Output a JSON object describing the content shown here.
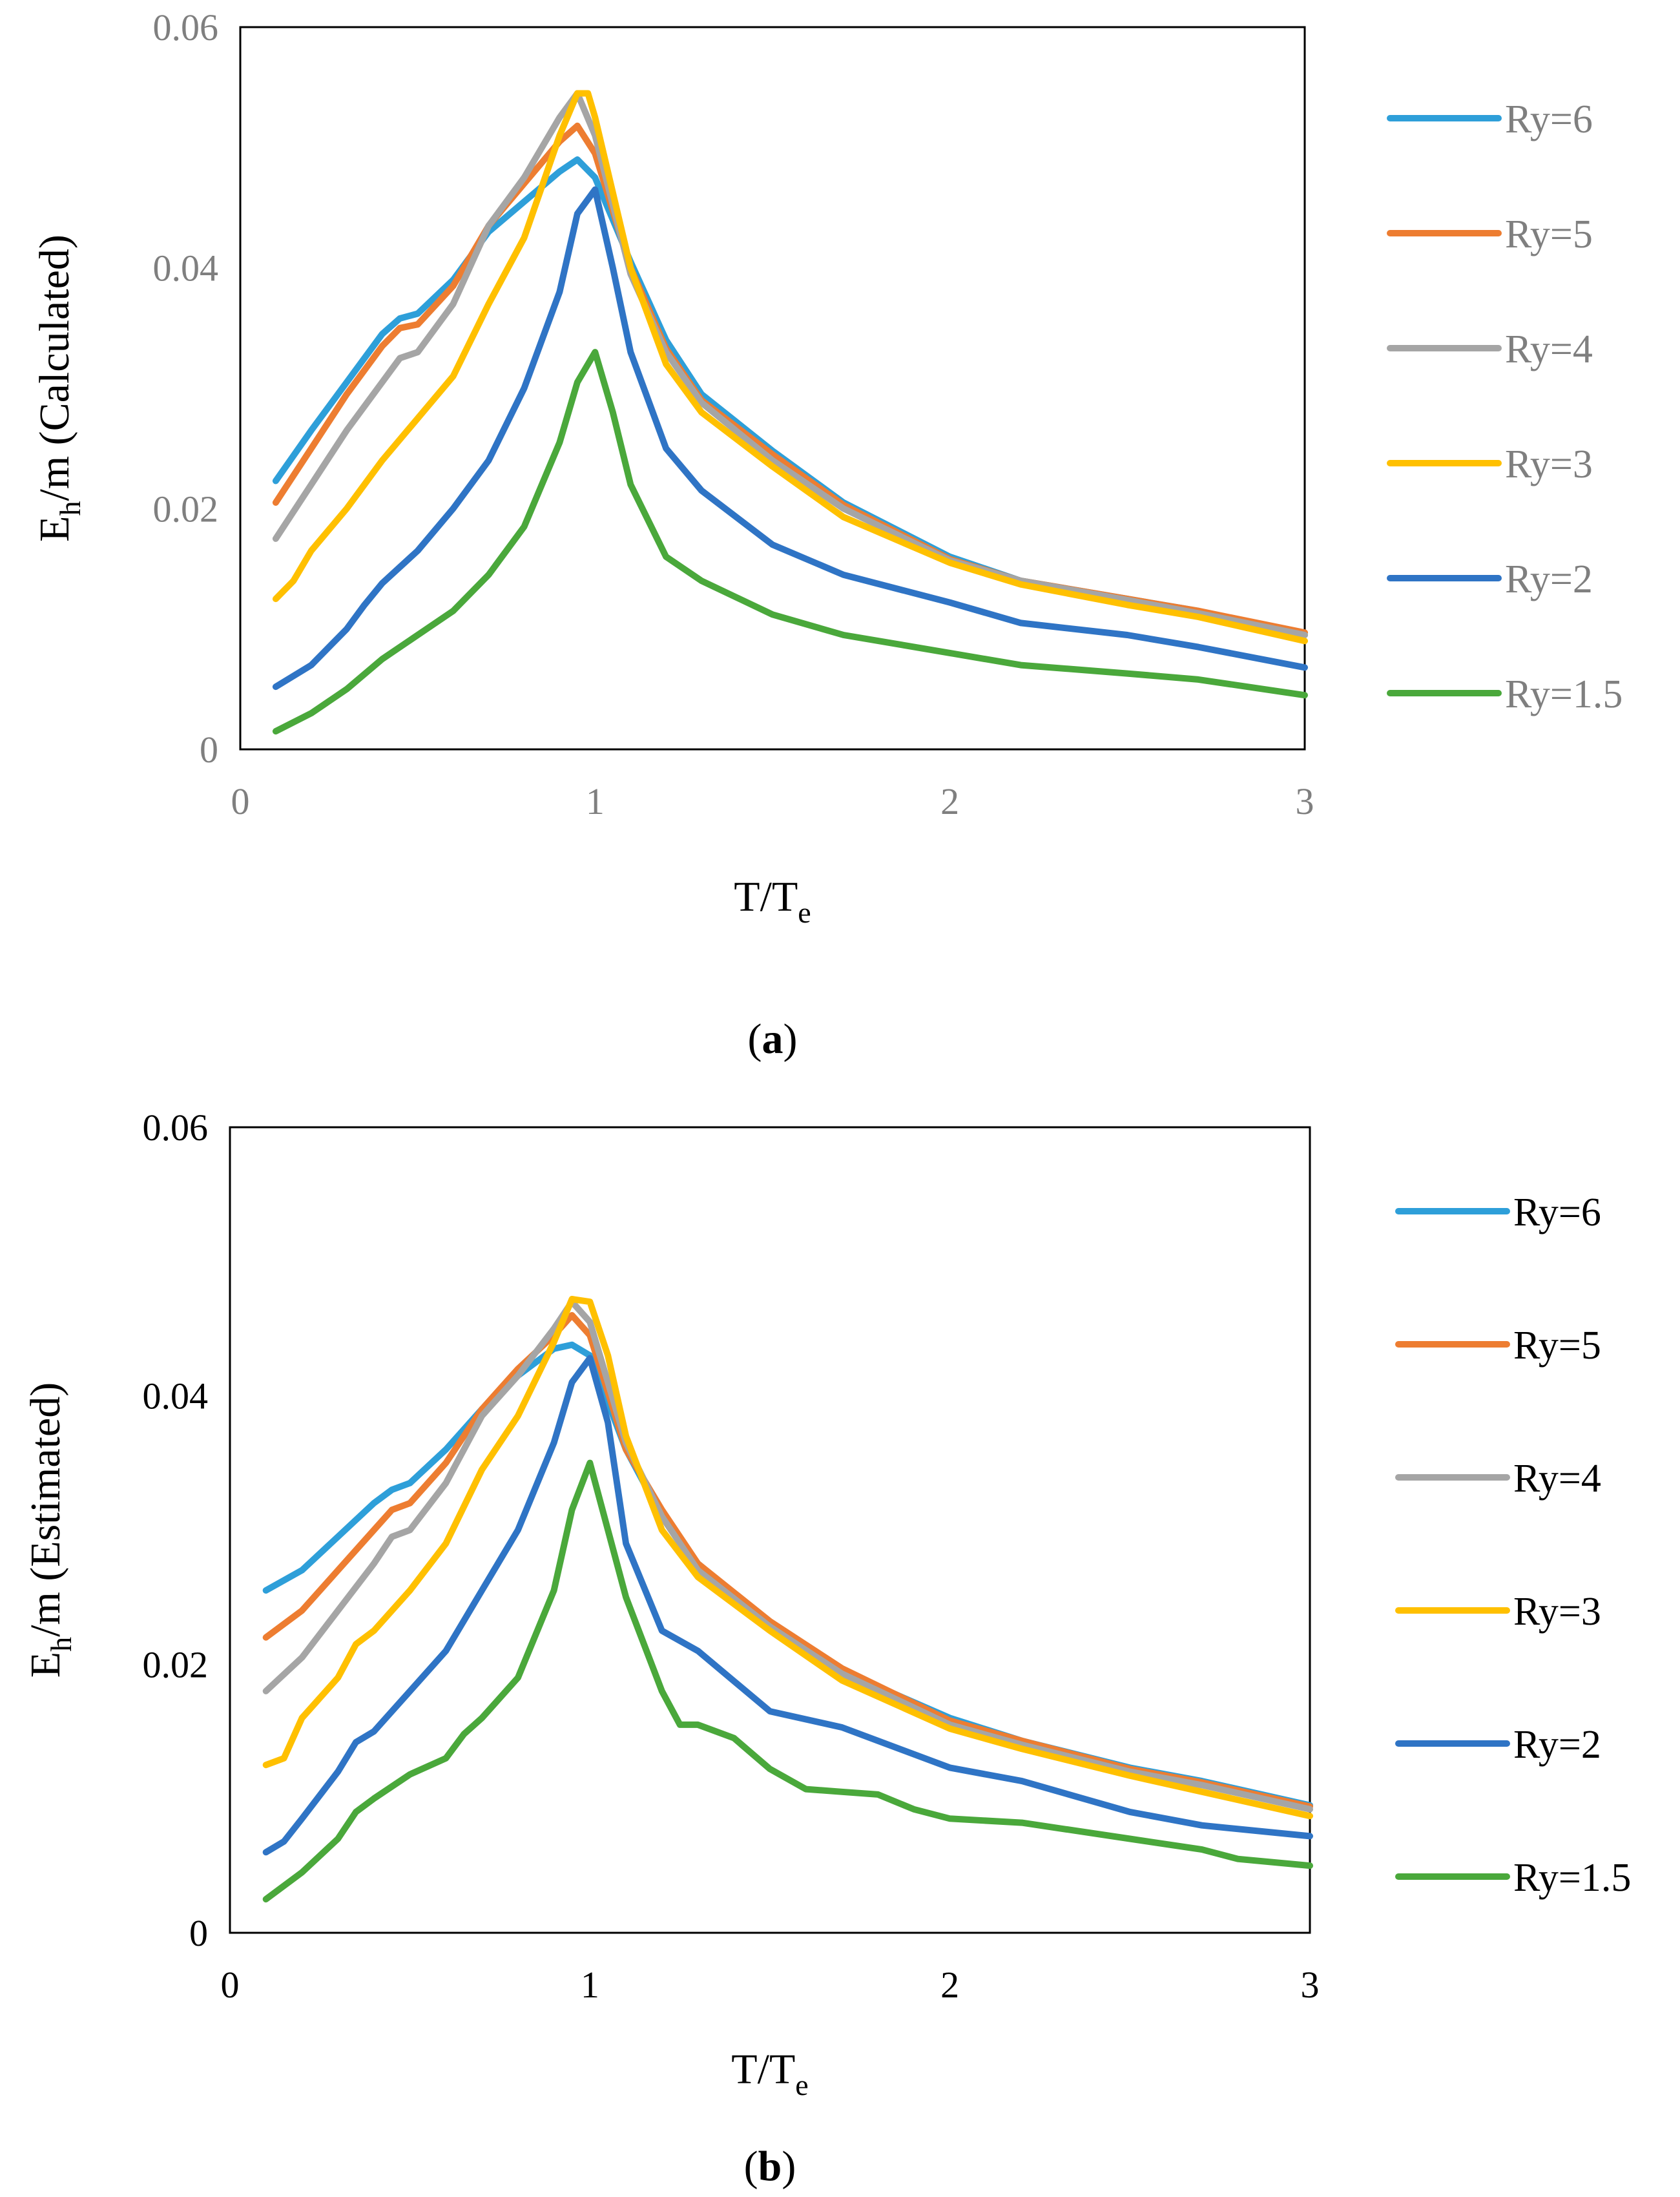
{
  "colors": {
    "Ry=6": "#2e9fd9",
    "Ry=5": "#ed7d31",
    "Ry=4": "#a5a5a5",
    "Ry=3": "#ffc000",
    "Ry=2": "#2f74c5",
    "Ry=1.5": "#4aa83b",
    "frame": "#000000",
    "tick_gray": "#7f7f7f"
  },
  "chart_data": [
    {
      "id": "a",
      "type": "line",
      "caption": "a",
      "xlabel": {
        "main": "T/T",
        "sub": "e"
      },
      "ylabel": {
        "pre": "E",
        "sub": "h",
        "post": "/m (Calculated)"
      },
      "xlim": [
        0,
        3
      ],
      "ylim": [
        0,
        0.06
      ],
      "xticks": [
        "0",
        "1",
        "2",
        "3"
      ],
      "yticks": [
        "0",
        "0.02",
        "0.04",
        "0.06"
      ],
      "legend_position": "right",
      "series": [
        {
          "name": "Ry=6",
          "x": [
            0.1,
            0.2,
            0.3,
            0.4,
            0.45,
            0.5,
            0.6,
            0.7,
            0.8,
            0.9,
            0.95,
            1.0,
            1.1,
            1.2,
            1.3,
            1.5,
            1.7,
            2.0,
            2.2,
            2.5,
            2.7,
            3.0
          ],
          "y": [
            0.0223,
            0.0265,
            0.0305,
            0.0345,
            0.0358,
            0.0362,
            0.039,
            0.043,
            0.0455,
            0.048,
            0.049,
            0.0475,
            0.0405,
            0.034,
            0.0295,
            0.0248,
            0.0205,
            0.016,
            0.014,
            0.0125,
            0.0115,
            0.0095
          ]
        },
        {
          "name": "Ry=5",
          "x": [
            0.1,
            0.2,
            0.3,
            0.4,
            0.45,
            0.5,
            0.6,
            0.7,
            0.8,
            0.9,
            0.95,
            1.0,
            1.1,
            1.2,
            1.3,
            1.5,
            1.7,
            2.0,
            2.2,
            2.5,
            2.7,
            3.0
          ],
          "y": [
            0.0205,
            0.025,
            0.0295,
            0.0335,
            0.035,
            0.0353,
            0.0385,
            0.0435,
            0.047,
            0.0505,
            0.0518,
            0.0495,
            0.04,
            0.0333,
            0.029,
            0.0245,
            0.0203,
            0.0158,
            0.014,
            0.0125,
            0.0115,
            0.0097
          ]
        },
        {
          "name": "Ry=4",
          "x": [
            0.1,
            0.2,
            0.3,
            0.4,
            0.45,
            0.5,
            0.6,
            0.7,
            0.8,
            0.9,
            0.95,
            1.0,
            1.1,
            1.2,
            1.3,
            1.5,
            1.7,
            2.0,
            2.2,
            2.5,
            2.7,
            3.0
          ],
          "y": [
            0.0175,
            0.022,
            0.0265,
            0.0305,
            0.0325,
            0.033,
            0.037,
            0.0435,
            0.0475,
            0.0525,
            0.0545,
            0.051,
            0.0395,
            0.033,
            0.0288,
            0.024,
            0.02,
            0.0157,
            0.014,
            0.0124,
            0.0113,
            0.0095
          ]
        },
        {
          "name": "Ry=3",
          "x": [
            0.1,
            0.15,
            0.2,
            0.3,
            0.4,
            0.5,
            0.6,
            0.7,
            0.8,
            0.9,
            0.95,
            0.98,
            1.0,
            1.1,
            1.2,
            1.3,
            1.5,
            1.7,
            2.0,
            2.2,
            2.5,
            2.7,
            3.0
          ],
          "y": [
            0.0125,
            0.014,
            0.0165,
            0.02,
            0.024,
            0.0275,
            0.031,
            0.037,
            0.0425,
            0.051,
            0.0545,
            0.0545,
            0.0525,
            0.04,
            0.032,
            0.028,
            0.0235,
            0.0193,
            0.0155,
            0.0137,
            0.012,
            0.011,
            0.009
          ]
        },
        {
          "name": "Ry=2",
          "x": [
            0.1,
            0.2,
            0.3,
            0.35,
            0.4,
            0.5,
            0.6,
            0.7,
            0.8,
            0.9,
            0.95,
            1.0,
            1.05,
            1.1,
            1.2,
            1.3,
            1.5,
            1.7,
            2.0,
            2.2,
            2.5,
            2.7,
            3.0
          ],
          "y": [
            0.0052,
            0.007,
            0.01,
            0.012,
            0.0138,
            0.0165,
            0.02,
            0.024,
            0.03,
            0.038,
            0.0445,
            0.0465,
            0.04,
            0.033,
            0.025,
            0.0215,
            0.017,
            0.0145,
            0.0122,
            0.0105,
            0.0095,
            0.0085,
            0.0068
          ]
        },
        {
          "name": "Ry=1.5",
          "x": [
            0.1,
            0.2,
            0.3,
            0.4,
            0.5,
            0.6,
            0.7,
            0.8,
            0.9,
            0.95,
            1.0,
            1.05,
            1.1,
            1.2,
            1.3,
            1.5,
            1.7,
            2.0,
            2.2,
            2.5,
            2.7,
            3.0
          ],
          "y": [
            0.0015,
            0.003,
            0.005,
            0.0075,
            0.0095,
            0.0115,
            0.0145,
            0.0185,
            0.0255,
            0.0305,
            0.033,
            0.028,
            0.022,
            0.016,
            0.014,
            0.0112,
            0.0095,
            0.008,
            0.007,
            0.0063,
            0.0058,
            0.0045
          ]
        }
      ]
    },
    {
      "id": "b",
      "type": "line",
      "caption": "b",
      "xlabel": {
        "main": "T/T",
        "sub": "e"
      },
      "ylabel": {
        "pre": "E",
        "sub": "h",
        "post": "/m (Estimated)"
      },
      "xlim": [
        0,
        3
      ],
      "ylim": [
        0,
        0.06
      ],
      "xticks": [
        "0",
        "1",
        "2",
        "3"
      ],
      "yticks": [
        "0",
        "0.02",
        "0.04",
        "0.06"
      ],
      "legend_position": "right",
      "series": [
        {
          "name": "Ry=6",
          "x": [
            0.1,
            0.2,
            0.3,
            0.4,
            0.45,
            0.5,
            0.6,
            0.7,
            0.8,
            0.9,
            0.95,
            1.0,
            1.1,
            1.2,
            1.3,
            1.5,
            1.7,
            2.0,
            2.2,
            2.5,
            2.7,
            3.0
          ],
          "y": [
            0.0255,
            0.027,
            0.0295,
            0.032,
            0.033,
            0.0335,
            0.036,
            0.039,
            0.0415,
            0.0435,
            0.0438,
            0.043,
            0.036,
            0.031,
            0.0275,
            0.023,
            0.0195,
            0.016,
            0.0143,
            0.0123,
            0.0113,
            0.0095
          ]
        },
        {
          "name": "Ry=5",
          "x": [
            0.1,
            0.2,
            0.3,
            0.4,
            0.45,
            0.5,
            0.6,
            0.7,
            0.8,
            0.9,
            0.95,
            1.0,
            1.1,
            1.2,
            1.3,
            1.5,
            1.7,
            2.0,
            2.2,
            2.5,
            2.7,
            3.0
          ],
          "y": [
            0.022,
            0.024,
            0.027,
            0.03,
            0.0315,
            0.032,
            0.035,
            0.039,
            0.042,
            0.0445,
            0.046,
            0.0445,
            0.036,
            0.0315,
            0.0275,
            0.0232,
            0.0197,
            0.0158,
            0.0143,
            0.0122,
            0.0112,
            0.0094
          ]
        },
        {
          "name": "Ry=4",
          "x": [
            0.1,
            0.2,
            0.3,
            0.4,
            0.45,
            0.5,
            0.6,
            0.7,
            0.8,
            0.9,
            0.95,
            1.0,
            1.1,
            1.2,
            1.3,
            1.5,
            1.7,
            2.0,
            2.2,
            2.5,
            2.7,
            3.0
          ],
          "y": [
            0.018,
            0.0205,
            0.024,
            0.0275,
            0.0295,
            0.03,
            0.0335,
            0.0385,
            0.0415,
            0.045,
            0.047,
            0.0455,
            0.0365,
            0.031,
            0.027,
            0.0228,
            0.0193,
            0.0155,
            0.014,
            0.012,
            0.011,
            0.0092
          ]
        },
        {
          "name": "Ry=3",
          "x": [
            0.1,
            0.15,
            0.2,
            0.3,
            0.35,
            0.4,
            0.5,
            0.6,
            0.7,
            0.8,
            0.9,
            0.95,
            1.0,
            1.05,
            1.1,
            1.2,
            1.3,
            1.5,
            1.7,
            2.0,
            2.2,
            2.5,
            2.7,
            3.0
          ],
          "y": [
            0.0125,
            0.013,
            0.016,
            0.019,
            0.0215,
            0.0225,
            0.0255,
            0.029,
            0.0345,
            0.0385,
            0.044,
            0.0472,
            0.047,
            0.043,
            0.037,
            0.03,
            0.0265,
            0.0225,
            0.0188,
            0.0152,
            0.0137,
            0.0117,
            0.0105,
            0.0087
          ]
        },
        {
          "name": "Ry=2",
          "x": [
            0.1,
            0.15,
            0.2,
            0.3,
            0.35,
            0.4,
            0.5,
            0.6,
            0.7,
            0.8,
            0.9,
            0.95,
            1.0,
            1.05,
            1.1,
            1.2,
            1.3,
            1.5,
            1.7,
            1.8,
            2.0,
            2.2,
            2.5,
            2.7,
            3.0
          ],
          "y": [
            0.006,
            0.0068,
            0.0085,
            0.012,
            0.0142,
            0.015,
            0.018,
            0.021,
            0.0255,
            0.03,
            0.0365,
            0.041,
            0.0428,
            0.038,
            0.029,
            0.0225,
            0.021,
            0.0165,
            0.0153,
            0.0143,
            0.0123,
            0.0113,
            0.009,
            0.008,
            0.0072
          ]
        },
        {
          "name": "Ry=1.5",
          "x": [
            0.1,
            0.2,
            0.3,
            0.35,
            0.4,
            0.5,
            0.6,
            0.65,
            0.7,
            0.8,
            0.9,
            0.95,
            1.0,
            1.05,
            1.1,
            1.2,
            1.25,
            1.3,
            1.4,
            1.5,
            1.6,
            1.7,
            1.8,
            1.9,
            2.0,
            2.2,
            2.5,
            2.7,
            2.8,
            3.0
          ],
          "y": [
            0.0025,
            0.0045,
            0.007,
            0.009,
            0.01,
            0.0118,
            0.013,
            0.0148,
            0.016,
            0.019,
            0.0255,
            0.0315,
            0.035,
            0.03,
            0.025,
            0.018,
            0.0155,
            0.0155,
            0.0145,
            0.0122,
            0.0107,
            0.0105,
            0.0103,
            0.0092,
            0.0085,
            0.0082,
            0.007,
            0.0062,
            0.0055,
            0.005
          ]
        }
      ]
    }
  ]
}
